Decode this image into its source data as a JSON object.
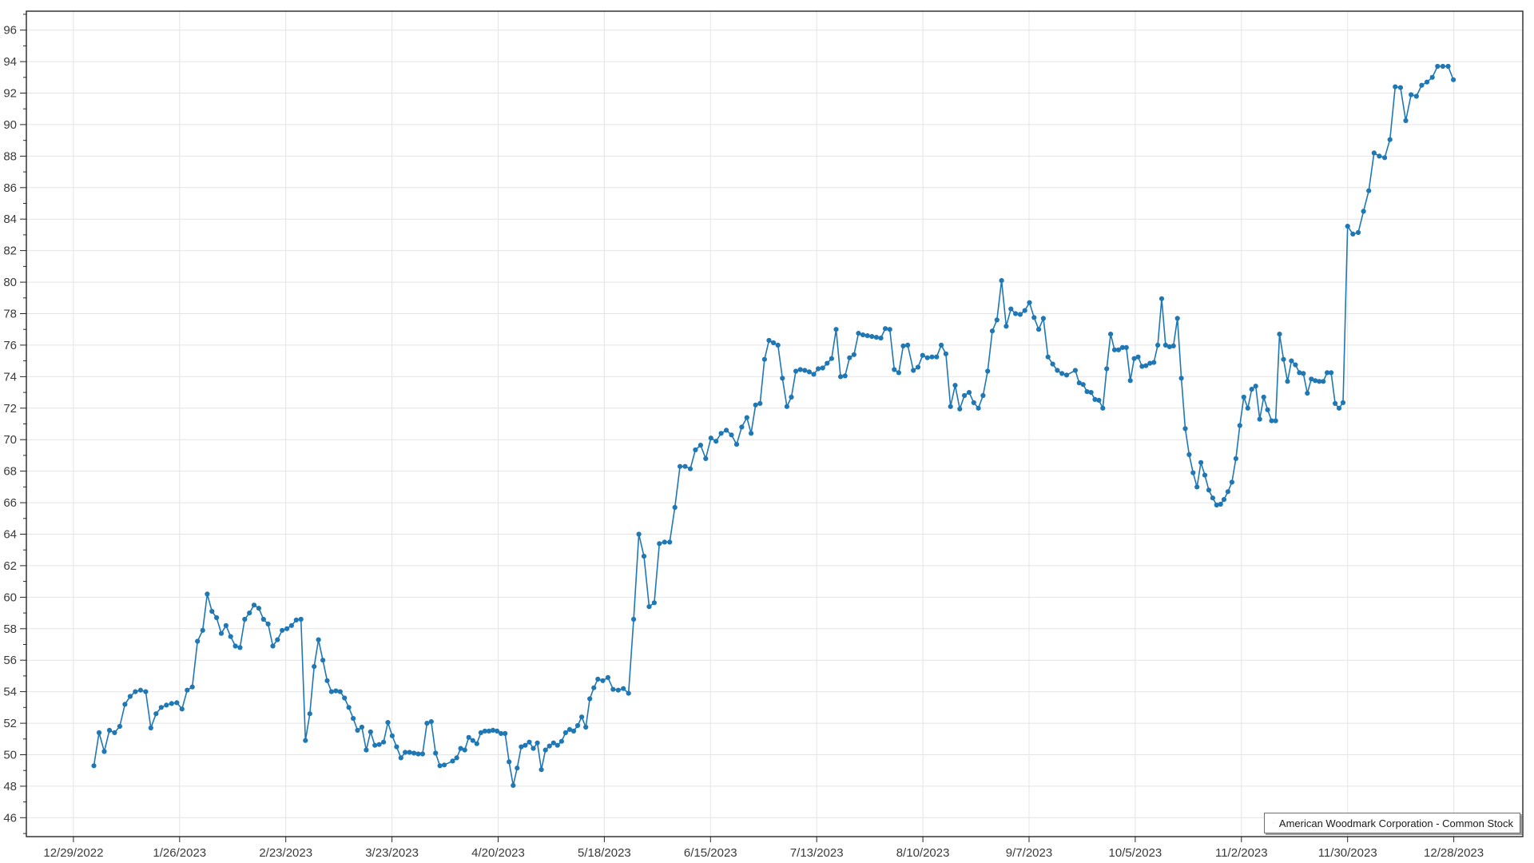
{
  "chart_data": {
    "type": "line",
    "title": "",
    "xlabel": "",
    "ylabel": "",
    "grid": true,
    "legend_position": "bottom-right",
    "background_color": "#ffffff",
    "gridline_color": "#e4e4e4",
    "axis_color": "#262626",
    "tick_label_color": "#3a3a3a",
    "ylim": [
      44.8,
      97.2
    ],
    "y_ticks": [
      46,
      48,
      50,
      52,
      54,
      56,
      58,
      60,
      62,
      64,
      66,
      68,
      70,
      72,
      74,
      76,
      78,
      80,
      82,
      84,
      86,
      88,
      90,
      92,
      94,
      96
    ],
    "y_minor_step": 1,
    "x_domain_days": [
      -12.4,
      382.2
    ],
    "x_ticks": [
      {
        "label": "12/29/2022",
        "day": 0
      },
      {
        "label": "1/26/2023",
        "day": 28
      },
      {
        "label": "2/23/2023",
        "day": 56
      },
      {
        "label": "3/23/2023",
        "day": 84
      },
      {
        "label": "4/20/2023",
        "day": 112
      },
      {
        "label": "5/18/2023",
        "day": 140
      },
      {
        "label": "6/15/2023",
        "day": 168
      },
      {
        "label": "7/13/2023",
        "day": 196
      },
      {
        "label": "8/10/2023",
        "day": 224
      },
      {
        "label": "9/7/2023",
        "day": 252
      },
      {
        "label": "10/5/2023",
        "day": 280
      },
      {
        "label": "11/2/2023",
        "day": 308
      },
      {
        "label": "11/30/2023",
        "day": 336
      },
      {
        "label": "12/28/2023",
        "day": 364
      }
    ],
    "series": [
      {
        "name": "American Woodmark Corporation - Common Stock",
        "color": "#1f77b4",
        "marker": "circle",
        "segments": [
          {
            "day_start": 5.4,
            "day_end": 34.1,
            "values": [
              49.3,
              51.4,
              50.2,
              51.55,
              51.4,
              51.8,
              53.2,
              53.7,
              54.0,
              54.1,
              54.0,
              51.7,
              52.6,
              53.0,
              53.15,
              53.25,
              53.3,
              52.9,
              54.1,
              54.3,
              57.2,
              57.9
            ]
          },
          {
            "day_start": 35.3,
            "day_end": 60.0,
            "values": [
              60.2,
              59.1,
              58.7,
              57.7,
              58.2,
              57.5,
              56.9,
              56.8,
              58.6,
              59.0,
              59.5,
              59.3,
              58.6,
              58.3,
              56.9,
              57.3,
              57.9,
              58.0,
              58.2,
              58.55,
              58.6
            ]
          },
          {
            "day_start": 61.2,
            "day_end": 97.8,
            "values": [
              50.9,
              52.6,
              55.6,
              57.3,
              56.0,
              54.7,
              54.0,
              54.05,
              54.0,
              53.6,
              53.0,
              52.3,
              51.55,
              51.75,
              50.3,
              51.45,
              50.6,
              50.65,
              50.8,
              52.05,
              51.2,
              50.5,
              49.8,
              50.15,
              50.15,
              50.1,
              50.05,
              50.05,
              52.0,
              52.1,
              50.1,
              49.3,
              49.35
            ]
          },
          {
            "day_start": 100.0,
            "day_end": 138.3,
            "values": [
              49.6,
              49.8,
              50.4,
              50.3,
              51.1,
              50.9,
              50.7,
              51.4,
              51.5,
              51.5,
              51.55,
              51.5,
              51.35,
              51.35,
              49.55,
              48.05,
              49.15,
              50.5,
              50.6,
              50.8,
              50.4,
              50.75,
              49.05,
              50.3,
              50.55,
              50.75,
              50.6,
              50.85,
              51.4,
              51.6,
              51.5,
              51.85,
              52.4,
              51.75,
              53.55,
              54.25,
              54.8
            ]
          },
          {
            "day_start": 139.6,
            "day_end": 177.6,
            "values": [
              54.7,
              54.9,
              54.15,
              54.1,
              54.2,
              53.9,
              58.6,
              64.0,
              62.6,
              59.4,
              59.65,
              63.4,
              63.5,
              63.5,
              65.7,
              68.3,
              68.3,
              68.15,
              69.35,
              69.65,
              68.8,
              70.1,
              69.9,
              70.4,
              70.6,
              70.3,
              69.7,
              70.8,
              71.4
            ]
          },
          {
            "day_start": 178.7,
            "day_end": 220.0,
            "values": [
              70.4,
              72.2,
              72.3,
              75.1,
              76.3,
              76.15,
              76.0,
              73.9,
              72.1,
              72.7,
              74.35,
              74.45,
              74.4,
              74.3,
              74.15,
              74.5,
              74.55,
              74.85,
              75.15,
              77.0,
              74.0,
              74.05,
              75.2,
              75.4,
              76.75,
              76.65,
              76.6,
              76.55,
              76.5,
              76.45,
              77.05,
              77.0,
              74.45,
              74.25,
              75.95,
              76.0
            ]
          },
          {
            "day_start": 221.5,
            "day_end": 261.9,
            "values": [
              74.4,
              74.6,
              75.35,
              75.2,
              75.25,
              75.25,
              76.0,
              75.45,
              72.1,
              73.45,
              71.95,
              72.8,
              73.0,
              72.35,
              72.0,
              72.8,
              74.35,
              76.9,
              77.6,
              80.1,
              77.2,
              78.3,
              78.0,
              77.95,
              78.2,
              78.7,
              77.75,
              77.0,
              77.7,
              75.25,
              74.8,
              74.4,
              74.2,
              74.1
            ]
          },
          {
            "day_start": 264.2,
            "day_end": 302.5,
            "values": [
              74.4,
              73.6,
              73.5,
              73.05,
              73.0,
              72.55,
              72.5,
              72.0,
              74.5,
              76.7,
              75.7,
              75.7,
              75.85,
              75.85,
              73.75,
              75.15,
              75.25,
              74.65,
              74.7,
              74.85,
              74.9,
              76.0,
              78.95,
              76.0,
              75.9,
              75.95,
              77.7,
              73.9,
              70.7,
              69.05,
              67.9,
              67.0,
              68.55,
              67.75,
              66.8,
              66.3,
              65.85,
              65.9
            ]
          },
          {
            "day_start": 303.4,
            "day_end": 334.8,
            "values": [
              66.2,
              66.7,
              67.3,
              68.8,
              70.9,
              72.7,
              72.0,
              73.2,
              73.4,
              71.3,
              72.7,
              71.9,
              71.2,
              71.2,
              76.7,
              75.1,
              73.7,
              75.0,
              74.75,
              74.25,
              74.2,
              72.95,
              73.85,
              73.75,
              73.7,
              73.7,
              74.25,
              74.25,
              72.3,
              72.0,
              72.35
            ]
          },
          {
            "day_start": 336.0,
            "day_end": 363.9,
            "values": [
              83.55,
              83.05,
              83.15,
              84.5,
              85.8,
              88.2,
              88.0,
              87.9,
              89.05,
              92.4,
              92.35,
              90.25,
              91.9,
              91.8,
              92.5,
              92.7,
              93.0,
              93.7,
              93.7,
              93.7,
              92.85
            ]
          }
        ]
      }
    ]
  },
  "legend": {
    "label": "American Woodmark Corporation - Common Stock"
  }
}
